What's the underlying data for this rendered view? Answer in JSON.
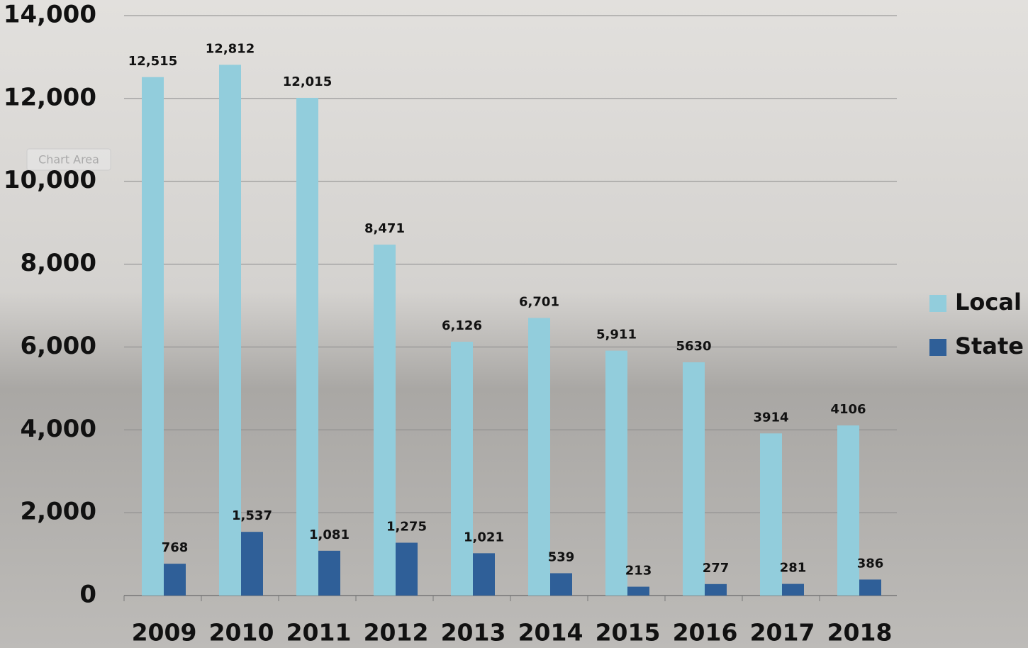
{
  "chart_data": {
    "type": "bar",
    "tooltip": "Chart Area",
    "categories": [
      "2009",
      "2010",
      "2011",
      "2012",
      "2013",
      "2014",
      "2015",
      "2016",
      "2017",
      "2018"
    ],
    "series": [
      {
        "name": "Local",
        "color": "#92cddc",
        "values": [
          12515,
          12812,
          12015,
          8471,
          6126,
          6701,
          5911,
          5630,
          3914,
          4106
        ],
        "value_labels": [
          "12,515",
          "12,812",
          "12,015",
          "8,471",
          "6,126",
          "6,701",
          "5,911",
          "5630",
          "3914",
          "4106"
        ]
      },
      {
        "name": "State",
        "color": "#2f5f98",
        "values": [
          768,
          1537,
          1081,
          1275,
          1021,
          539,
          213,
          277,
          281,
          386
        ],
        "value_labels": [
          "768",
          "1,537",
          "1,081",
          "1,275",
          "1,021",
          "539",
          "213",
          "277",
          "281",
          "386"
        ]
      }
    ],
    "ylim": [
      0,
      14000
    ],
    "yticks": [
      0,
      {
        "value": 2000,
        "label": "2,000"
      },
      {
        "value": 4000,
        "label": "4,000"
      },
      {
        "value": 6000,
        "label": "6,000"
      },
      {
        "value": 8000,
        "label": "8,000"
      },
      {
        "value": 10000,
        "label": "10,000"
      },
      {
        "value": 12000,
        "label": "12,000"
      },
      {
        "value": 14000,
        "label": "14,000"
      }
    ],
    "grid": true,
    "legend": "right"
  }
}
